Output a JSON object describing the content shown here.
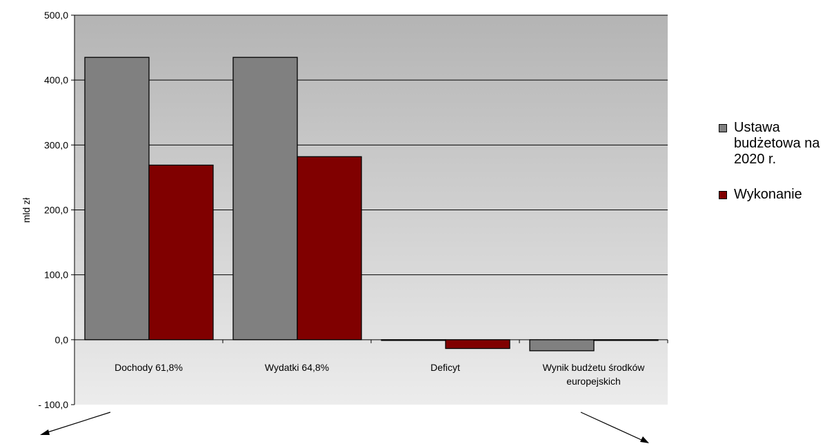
{
  "chart_data": {
    "type": "bar",
    "categories": [
      "Dochody 61,8%",
      "Wydatki 64,8%",
      "Deficyt",
      "Wynik budżetu środków europejskich"
    ],
    "category_lines": [
      [
        "Dochody 61,8%"
      ],
      [
        "Wydatki 64,8%"
      ],
      [
        "Deficyt"
      ],
      [
        "Wynik budżetu środków",
        "europejskich"
      ]
    ],
    "series": [
      {
        "name": "Ustawa budżetowa na 2020 r.",
        "values": [
          435.0,
          435.0,
          0.0,
          -17.0
        ],
        "color": "#808080"
      },
      {
        "name": "Wykonanie",
        "values": [
          269.0,
          282.0,
          -13.5,
          -1.0
        ],
        "color": "#800000"
      }
    ],
    "ylabel": "mld zł",
    "ylim": [
      -100,
      500
    ],
    "yticks": [
      500,
      400,
      300,
      200,
      100,
      0,
      -100
    ],
    "ytick_labels": [
      "500,0",
      "400,0",
      "300,0",
      "200,0",
      "100,0",
      "0,0",
      "- 100,0"
    ],
    "grid": true,
    "legend_position": "right"
  }
}
